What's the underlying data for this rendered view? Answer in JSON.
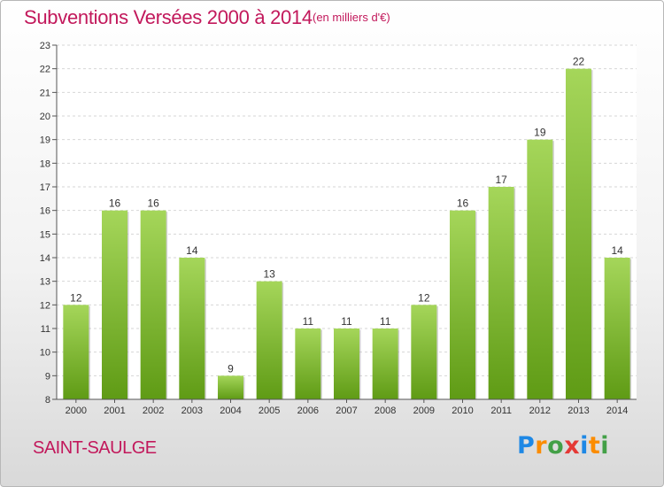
{
  "header": {
    "title": "Subventions Versées 2000 à 2014",
    "subtitle": "(en milliers d'€)"
  },
  "footer": {
    "commune": "SAINT-SAULGE",
    "logo_letters": [
      {
        "ch": "P",
        "color": "#1e88e5"
      },
      {
        "ch": "r",
        "color": "#fb8c00"
      },
      {
        "ch": "o",
        "color": "#43a047"
      },
      {
        "ch": "x",
        "color": "#e53935"
      },
      {
        "ch": "i",
        "color": "#1e88e5"
      },
      {
        "ch": "t",
        "color": "#fb8c00"
      },
      {
        "ch": "i",
        "color": "#43a047"
      }
    ]
  },
  "colors": {
    "title": "#c2185b",
    "bar_top": "#a5d65a",
    "bar_bottom": "#5f9b15",
    "grid": "#d6d6d6"
  },
  "chart_data": {
    "type": "bar",
    "categories": [
      "2000",
      "2001",
      "2002",
      "2003",
      "2004",
      "2005",
      "2006",
      "2007",
      "2008",
      "2009",
      "2010",
      "2011",
      "2012",
      "2013",
      "2014"
    ],
    "values": [
      12,
      16,
      16,
      14,
      9,
      13,
      11,
      11,
      11,
      12,
      16,
      17,
      19,
      22,
      14
    ],
    "ylim": [
      8,
      23
    ],
    "yticks": [
      8,
      9,
      10,
      11,
      12,
      13,
      14,
      15,
      16,
      17,
      18,
      19,
      20,
      21,
      22,
      23
    ],
    "grid": true,
    "data_labels": true
  }
}
